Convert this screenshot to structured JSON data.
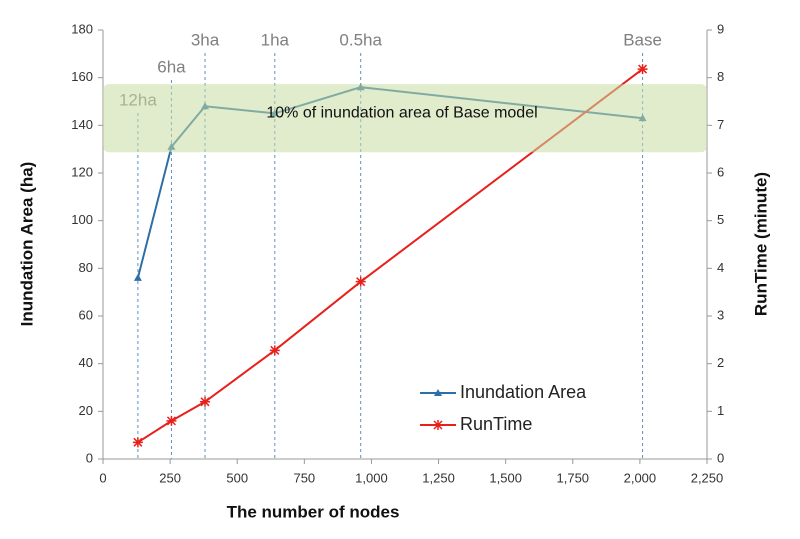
{
  "chart_data": {
    "type": "line",
    "x_label": "The number of nodes",
    "y_label": "Inundation Area (ha)",
    "y2_label": "RunTime (minute)",
    "xlim": [
      0,
      2250
    ],
    "xticks": [
      0,
      250,
      500,
      750,
      {
        "value": 1000,
        "label": "1,000"
      },
      {
        "value": 1250,
        "label": "1,250"
      },
      {
        "value": 1500,
        "label": "1,500"
      },
      {
        "value": 1750,
        "label": "1,750"
      },
      {
        "value": 2000,
        "label": "2,000"
      },
      {
        "value": 2250,
        "label": "2,250"
      }
    ],
    "ylim": [
      0,
      180
    ],
    "yticks": [
      0,
      20,
      40,
      60,
      80,
      100,
      120,
      140,
      160,
      180
    ],
    "y2lim": [
      0,
      9
    ],
    "y2ticks": [
      0,
      1,
      2,
      3,
      4,
      5,
      6,
      7,
      8,
      9
    ],
    "x": [
      130,
      255,
      380,
      640,
      960,
      2010
    ],
    "series": [
      {
        "name": "Inundation Area",
        "color": "#2e6ea6",
        "marker": "triangle",
        "values": [
          76,
          131,
          148,
          145,
          156,
          143
        ]
      },
      {
        "name": "RunTime",
        "color": "#e8201c",
        "marker": "star",
        "axis": "y2",
        "values": [
          0.35,
          0.8,
          1.2,
          2.28,
          3.72,
          8.18
        ]
      }
    ],
    "ref_lines": [
      {
        "x": 130,
        "label": "12ha"
      },
      {
        "x": 255,
        "label": "6ha"
      },
      {
        "x": 380,
        "label": "3ha"
      },
      {
        "x": 640,
        "label": "1ha"
      },
      {
        "x": 960,
        "label": "0.5ha"
      },
      {
        "x": 2010,
        "label": "Base"
      }
    ],
    "band": {
      "range": [
        128.7,
        157.3
      ],
      "color": "#c6dca0",
      "label": "10% of inundation area of Base model"
    },
    "legend": "lower right"
  }
}
